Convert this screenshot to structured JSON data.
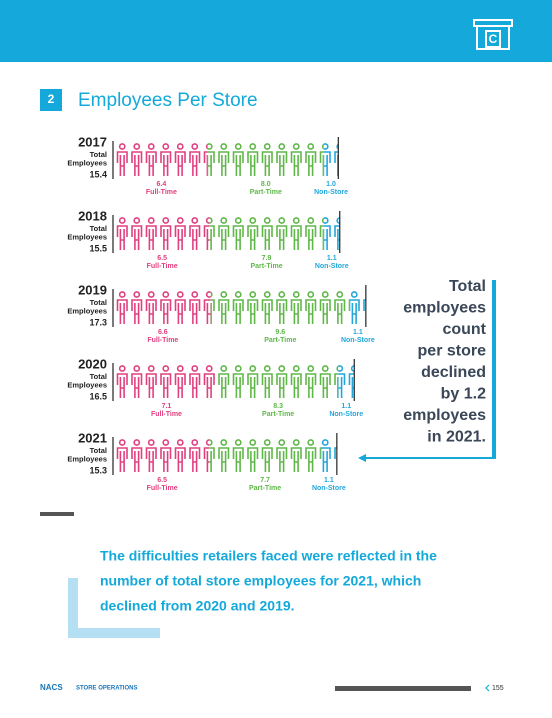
{
  "section": {
    "number": "2",
    "title": "Employees Per Store"
  },
  "chart_data": {
    "type": "pictograph",
    "categories": [
      "2017",
      "2018",
      "2019",
      "2020",
      "2021"
    ],
    "total_label": [
      "Total",
      "Employees"
    ],
    "totals": [
      15.4,
      15.5,
      17.3,
      16.5,
      15.3
    ],
    "series": [
      {
        "name": "Full-Time",
        "color": "#e0407f",
        "values": [
          6.4,
          6.5,
          6.6,
          7.1,
          6.5
        ]
      },
      {
        "name": "Part-Time",
        "color": "#5fb748",
        "values": [
          8,
          7.9,
          9.6,
          8.3,
          7.7
        ],
        "value_labels": [
          "8.0",
          "7.9",
          "9.6",
          "8.3",
          "7.7"
        ]
      },
      {
        "name": "Non-Store",
        "color": "#22a6dc",
        "values": [
          1,
          1.1,
          1.1,
          1.1,
          1.1
        ],
        "value_labels": [
          "1.0",
          "1.1",
          "1.1",
          "1.1",
          "1.1"
        ]
      }
    ]
  },
  "callout": [
    "Total",
    "employees",
    "count",
    "per store",
    "declined",
    "by 1.2",
    "employees",
    "in 2021."
  ],
  "quote": [
    "The difficulties retailers faced were reflected in the",
    "number of total store employees for 2021, which",
    "declined from 2020 and 2019."
  ],
  "footer": {
    "brand": "NACS",
    "section": "STORE OPERATIONS",
    "page": "155"
  }
}
